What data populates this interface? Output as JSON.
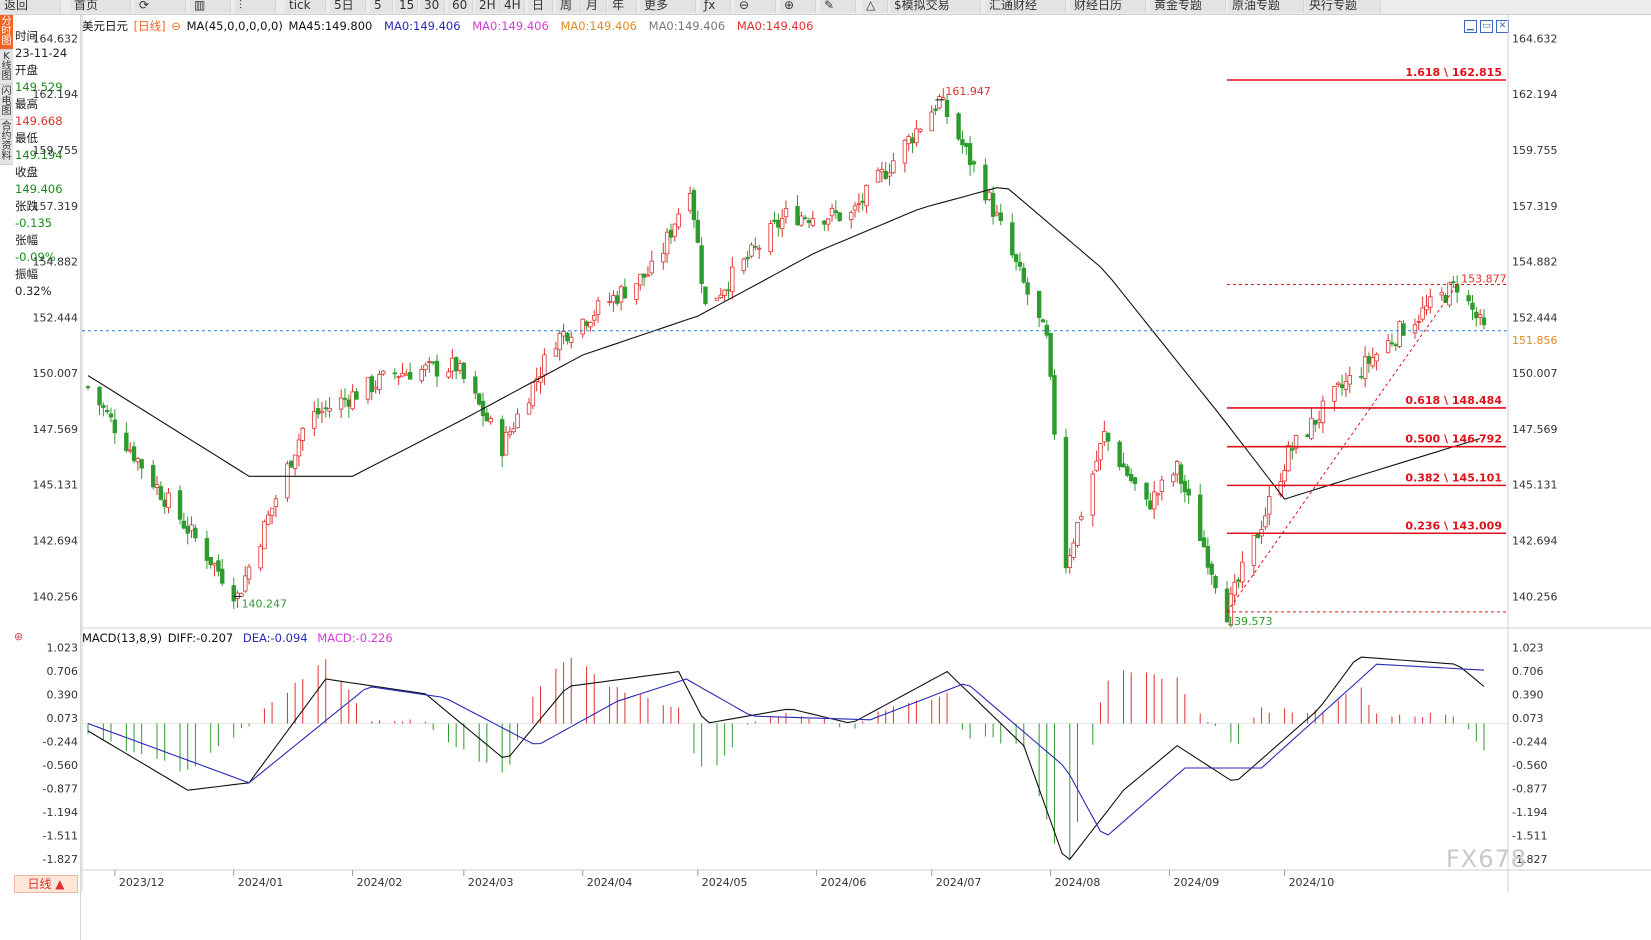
{
  "toolbar": {
    "items": [
      "返回",
      "首页",
      "",
      "",
      "",
      "tick",
      "5日",
      "5",
      "15",
      "30",
      "60",
      "2H",
      "4H",
      "日",
      "周",
      "月",
      "年",
      "更多",
      "",
      "",
      "",
      "",
      "",
      "$模拟交易",
      "汇通财经",
      "财经日历",
      "黄金专题",
      "原油专题",
      "央行专题"
    ]
  },
  "side_tabs": [
    "分时图",
    "K线图",
    "闪电图",
    "合约资料"
  ],
  "info_panel": {
    "time_label": "时间",
    "time_value": "23-11-24",
    "open_label": "开盘",
    "open_value": "149.529",
    "high_label": "最高",
    "high_value": "149.668",
    "low_label": "最低",
    "low_value": "149.194",
    "close_label": "收盘",
    "close_value": "149.406",
    "change_label": "张跌",
    "change_value": "-0.135",
    "pct_label": "张幅",
    "pct_value": "-0.09%",
    "amp_label": "振幅",
    "amp_value": "0.32%"
  },
  "header": {
    "symbol": "美元日元",
    "period": "[日线]",
    "ma_params": "MA(45,0,0,0,0,0)",
    "ma45": "MA45:149.800",
    "ma0_1": "MA0:149.406",
    "ma0_2": "MA0:149.406",
    "ma0_3": "MA0:149.406",
    "ma0_4": "MA0:149.406",
    "ma0_5": "MA0:149.406"
  },
  "macd_header": {
    "name": "MACD(13,8,9)",
    "diff": "DIFF:-0.207",
    "dea": "DEA:-0.094",
    "macd": "MACD:-0.226"
  },
  "period_tab": "日线",
  "watermark": "FX678",
  "colors": {
    "up": "#e0302f",
    "down": "#2e9b2e",
    "ma": "#111111",
    "dea": "#2a2ab8",
    "fib": "#e0101a",
    "price_line": "#2b7fd0"
  },
  "chart_data": [
    {
      "type": "candlestick",
      "ylim": [
        139.0,
        165.0
      ],
      "y_ticks": [
        164.632,
        162.194,
        159.755,
        157.319,
        154.882,
        152.444,
        150.007,
        147.569,
        145.131,
        142.694,
        140.256
      ],
      "x_ticks": [
        "2023/12",
        "2024/01",
        "2024/02",
        "2024/03",
        "2024/04",
        "2024/05",
        "2024/06",
        "2024/07",
        "2024/08",
        "2024/09",
        "2024/10"
      ],
      "anchors": [
        {
          "date": "2023-11-24",
          "price": 149.4
        },
        {
          "date": "2023-12-10",
          "price": 145.5
        },
        {
          "date": "2024-01-02",
          "price": 140.25
        },
        {
          "date": "2024-01-20",
          "price": 148.0
        },
        {
          "date": "2024-02-12",
          "price": 150.0
        },
        {
          "date": "2024-02-28",
          "price": 150.3
        },
        {
          "date": "2024-03-11",
          "price": 146.8
        },
        {
          "date": "2024-03-25",
          "price": 151.5
        },
        {
          "date": "2024-04-20",
          "price": 154.6
        },
        {
          "date": "2024-04-29",
          "price": 158.3
        },
        {
          "date": "2024-05-03",
          "price": 152.9
        },
        {
          "date": "2024-05-24",
          "price": 156.9
        },
        {
          "date": "2024-06-10",
          "price": 156.9
        },
        {
          "date": "2024-07-03",
          "price": 161.947
        },
        {
          "date": "2024-07-15",
          "price": 158.0
        },
        {
          "date": "2024-07-31",
          "price": 151.4
        },
        {
          "date": "2024-08-05",
          "price": 141.7
        },
        {
          "date": "2024-08-15",
          "price": 147.3
        },
        {
          "date": "2024-08-26",
          "price": 144.2
        },
        {
          "date": "2024-09-03",
          "price": 145.8
        },
        {
          "date": "2024-09-16",
          "price": 139.573
        },
        {
          "date": "2024-10-02",
          "price": 146.5
        },
        {
          "date": "2024-10-15",
          "price": 149.2
        },
        {
          "date": "2024-11-01",
          "price": 152.0
        },
        {
          "date": "2024-11-15",
          "price": 153.877
        },
        {
          "date": "2024-11-22",
          "price": 151.856
        }
      ],
      "ma45_anchors": [
        {
          "date": "2023-11-24",
          "price": 149.9
        },
        {
          "date": "2024-01-05",
          "price": 145.5
        },
        {
          "date": "2024-02-01",
          "price": 145.5
        },
        {
          "date": "2024-03-01",
          "price": 148.0
        },
        {
          "date": "2024-04-01",
          "price": 150.8
        },
        {
          "date": "2024-05-01",
          "price": 152.5
        },
        {
          "date": "2024-06-01",
          "price": 155.3
        },
        {
          "date": "2024-06-28",
          "price": 157.2
        },
        {
          "date": "2024-07-20",
          "price": 158.2
        },
        {
          "date": "2024-08-15",
          "price": 154.5
        },
        {
          "date": "2024-09-15",
          "price": 148.0
        },
        {
          "date": "2024-10-01",
          "price": 144.5
        },
        {
          "date": "2024-10-20",
          "price": 145.5
        },
        {
          "date": "2024-11-22",
          "price": 147.2
        }
      ],
      "high_label": "161.947",
      "low1_label": "140.247",
      "low2_label": "139.573",
      "recent_high_label": "153.877",
      "last_price_label": "151.856",
      "fib_levels": [
        {
          "label": "1.618 \\ 162.815",
          "value": 162.815
        },
        {
          "label": "0.618 \\ 148.484",
          "value": 148.484
        },
        {
          "label": "0.500 \\ 146.792",
          "value": 146.792
        },
        {
          "label": "0.382 \\ 145.101",
          "value": 145.101
        },
        {
          "label": "0.236 \\ 143.009",
          "value": 143.009
        }
      ]
    },
    {
      "type": "macd",
      "ylim": [
        -1.95,
        1.1
      ],
      "y_ticks": [
        1.023,
        0.706,
        0.39,
        0.073,
        -0.244,
        -0.56,
        -0.877,
        -1.194,
        -1.511,
        -1.827
      ],
      "diff_anchors": [
        {
          "date": "2023-11-24",
          "v": -0.1
        },
        {
          "date": "2023-12-20",
          "v": -0.9
        },
        {
          "date": "2024-01-05",
          "v": -0.8
        },
        {
          "date": "2024-01-25",
          "v": 0.6
        },
        {
          "date": "2024-02-20",
          "v": 0.4
        },
        {
          "date": "2024-03-12",
          "v": -0.5
        },
        {
          "date": "2024-03-28",
          "v": 0.5
        },
        {
          "date": "2024-04-26",
          "v": 0.7
        },
        {
          "date": "2024-05-03",
          "v": 0.0
        },
        {
          "date": "2024-05-25",
          "v": 0.2
        },
        {
          "date": "2024-06-10",
          "v": 0.0
        },
        {
          "date": "2024-07-05",
          "v": 0.7
        },
        {
          "date": "2024-07-25",
          "v": -0.3
        },
        {
          "date": "2024-08-05",
          "v": -1.9
        },
        {
          "date": "2024-08-20",
          "v": -0.9
        },
        {
          "date": "2024-09-03",
          "v": -0.3
        },
        {
          "date": "2024-09-18",
          "v": -0.8
        },
        {
          "date": "2024-10-10",
          "v": 0.2
        },
        {
          "date": "2024-10-20",
          "v": 0.9
        },
        {
          "date": "2024-11-15",
          "v": 0.8
        },
        {
          "date": "2024-11-22",
          "v": 0.5
        }
      ],
      "dea_anchors": [
        {
          "date": "2023-11-24",
          "v": 0.0
        },
        {
          "date": "2024-01-05",
          "v": -0.8
        },
        {
          "date": "2024-02-05",
          "v": 0.5
        },
        {
          "date": "2024-02-25",
          "v": 0.35
        },
        {
          "date": "2024-03-20",
          "v": -0.3
        },
        {
          "date": "2024-04-10",
          "v": 0.3
        },
        {
          "date": "2024-04-28",
          "v": 0.6
        },
        {
          "date": "2024-05-15",
          "v": 0.1
        },
        {
          "date": "2024-06-15",
          "v": 0.05
        },
        {
          "date": "2024-07-10",
          "v": 0.55
        },
        {
          "date": "2024-08-05",
          "v": -0.6
        },
        {
          "date": "2024-08-15",
          "v": -1.55
        },
        {
          "date": "2024-09-05",
          "v": -0.6
        },
        {
          "date": "2024-09-25",
          "v": -0.6
        },
        {
          "date": "2024-10-25",
          "v": 0.8
        },
        {
          "date": "2024-11-22",
          "v": 0.72
        }
      ]
    }
  ]
}
